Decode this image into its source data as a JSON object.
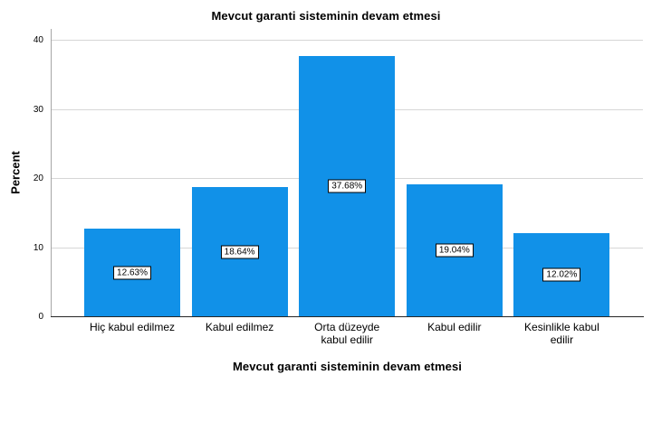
{
  "chart_data": {
    "type": "bar",
    "title": "Mevcut garanti sisteminin devam etmesi",
    "xlabel": "Mevcut garanti sisteminin devam etmesi",
    "ylabel": "Percent",
    "categories": [
      "Hiç kabul edilmez",
      "Kabul edilmez",
      "Orta düzeyde\nkabul edilir",
      "Kabul edilir",
      "Kesinlikle kabul\nedilir"
    ],
    "values": [
      12.63,
      18.64,
      37.68,
      19.04,
      12.02
    ],
    "value_labels": [
      "12.63%",
      "18.64%",
      "37.68%",
      "19.04%",
      "12.02%"
    ],
    "yticks": [
      0,
      10,
      20,
      30,
      40
    ],
    "ylim": [
      0,
      40
    ],
    "grid": "horizontal",
    "legend": "none",
    "bar_color": "#1191e8",
    "gridline_color": "#d6d6d6",
    "yaxis_line_color": "#a6a6a6",
    "xaxis_line_color": "#262626",
    "text_color": "#000000",
    "background": "#ffffff"
  }
}
